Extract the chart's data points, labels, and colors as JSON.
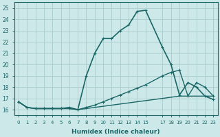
{
  "xlabel": "Humidex (Indice chaleur)",
  "background_color": "#cce8e8",
  "grid_color": "#aacccc",
  "line_color": "#1a6666",
  "xlim": [
    -0.5,
    23.5
  ],
  "ylim": [
    15.5,
    25.5
  ],
  "yticks": [
    16,
    17,
    18,
    19,
    20,
    21,
    22,
    23,
    24,
    25
  ],
  "xticks": [
    0,
    1,
    2,
    3,
    4,
    5,
    6,
    7,
    8,
    9,
    10,
    11,
    12,
    13,
    14,
    15,
    17,
    18,
    19,
    20,
    21,
    22,
    23
  ],
  "xtick_labels": [
    "0",
    "1",
    "2",
    "3",
    "4",
    "5",
    "6",
    "7",
    "8",
    "9",
    "10",
    "11",
    "12",
    "13",
    "14",
    "15",
    "17",
    "18",
    "19",
    "20",
    "21",
    "22",
    "23"
  ],
  "lines": [
    {
      "x": [
        0,
        1,
        2,
        3,
        4,
        5,
        6,
        7,
        8,
        9,
        10,
        11,
        12,
        13,
        14,
        15,
        17,
        18,
        19,
        20,
        21,
        22,
        23
      ],
      "y": [
        16.7,
        16.2,
        16.1,
        16.1,
        16.1,
        16.1,
        16.1,
        16.0,
        16.1,
        16.2,
        16.3,
        16.4,
        16.5,
        16.6,
        16.7,
        16.8,
        17.0,
        17.1,
        17.2,
        17.2,
        17.2,
        17.2,
        17.2
      ],
      "marker": null,
      "lw": 1.0
    },
    {
      "x": [
        0,
        1,
        2,
        3,
        4,
        5,
        6,
        7,
        8,
        9,
        10,
        11,
        12,
        13,
        14,
        15,
        17,
        18,
        19,
        20,
        21,
        22,
        23
      ],
      "y": [
        16.7,
        16.2,
        16.1,
        16.1,
        16.1,
        16.1,
        16.1,
        16.0,
        16.2,
        16.4,
        16.7,
        17.0,
        17.3,
        17.6,
        17.9,
        18.2,
        19.0,
        19.3,
        19.5,
        17.2,
        18.4,
        18.0,
        17.2
      ],
      "marker": "+",
      "lw": 1.0
    },
    {
      "x": [
        0,
        1,
        2,
        3,
        4,
        5,
        6,
        7,
        8,
        9,
        10,
        11,
        12,
        13,
        14,
        15,
        17,
        18,
        19,
        20,
        21,
        22,
        23
      ],
      "y": [
        16.7,
        16.2,
        16.1,
        16.1,
        16.1,
        16.1,
        16.2,
        16.0,
        19.0,
        21.0,
        22.3,
        22.3,
        23.0,
        23.5,
        24.7,
        24.8,
        21.5,
        20.0,
        17.3,
        18.4,
        18.0,
        17.2,
        16.9
      ],
      "marker": "+",
      "lw": 1.2
    }
  ]
}
